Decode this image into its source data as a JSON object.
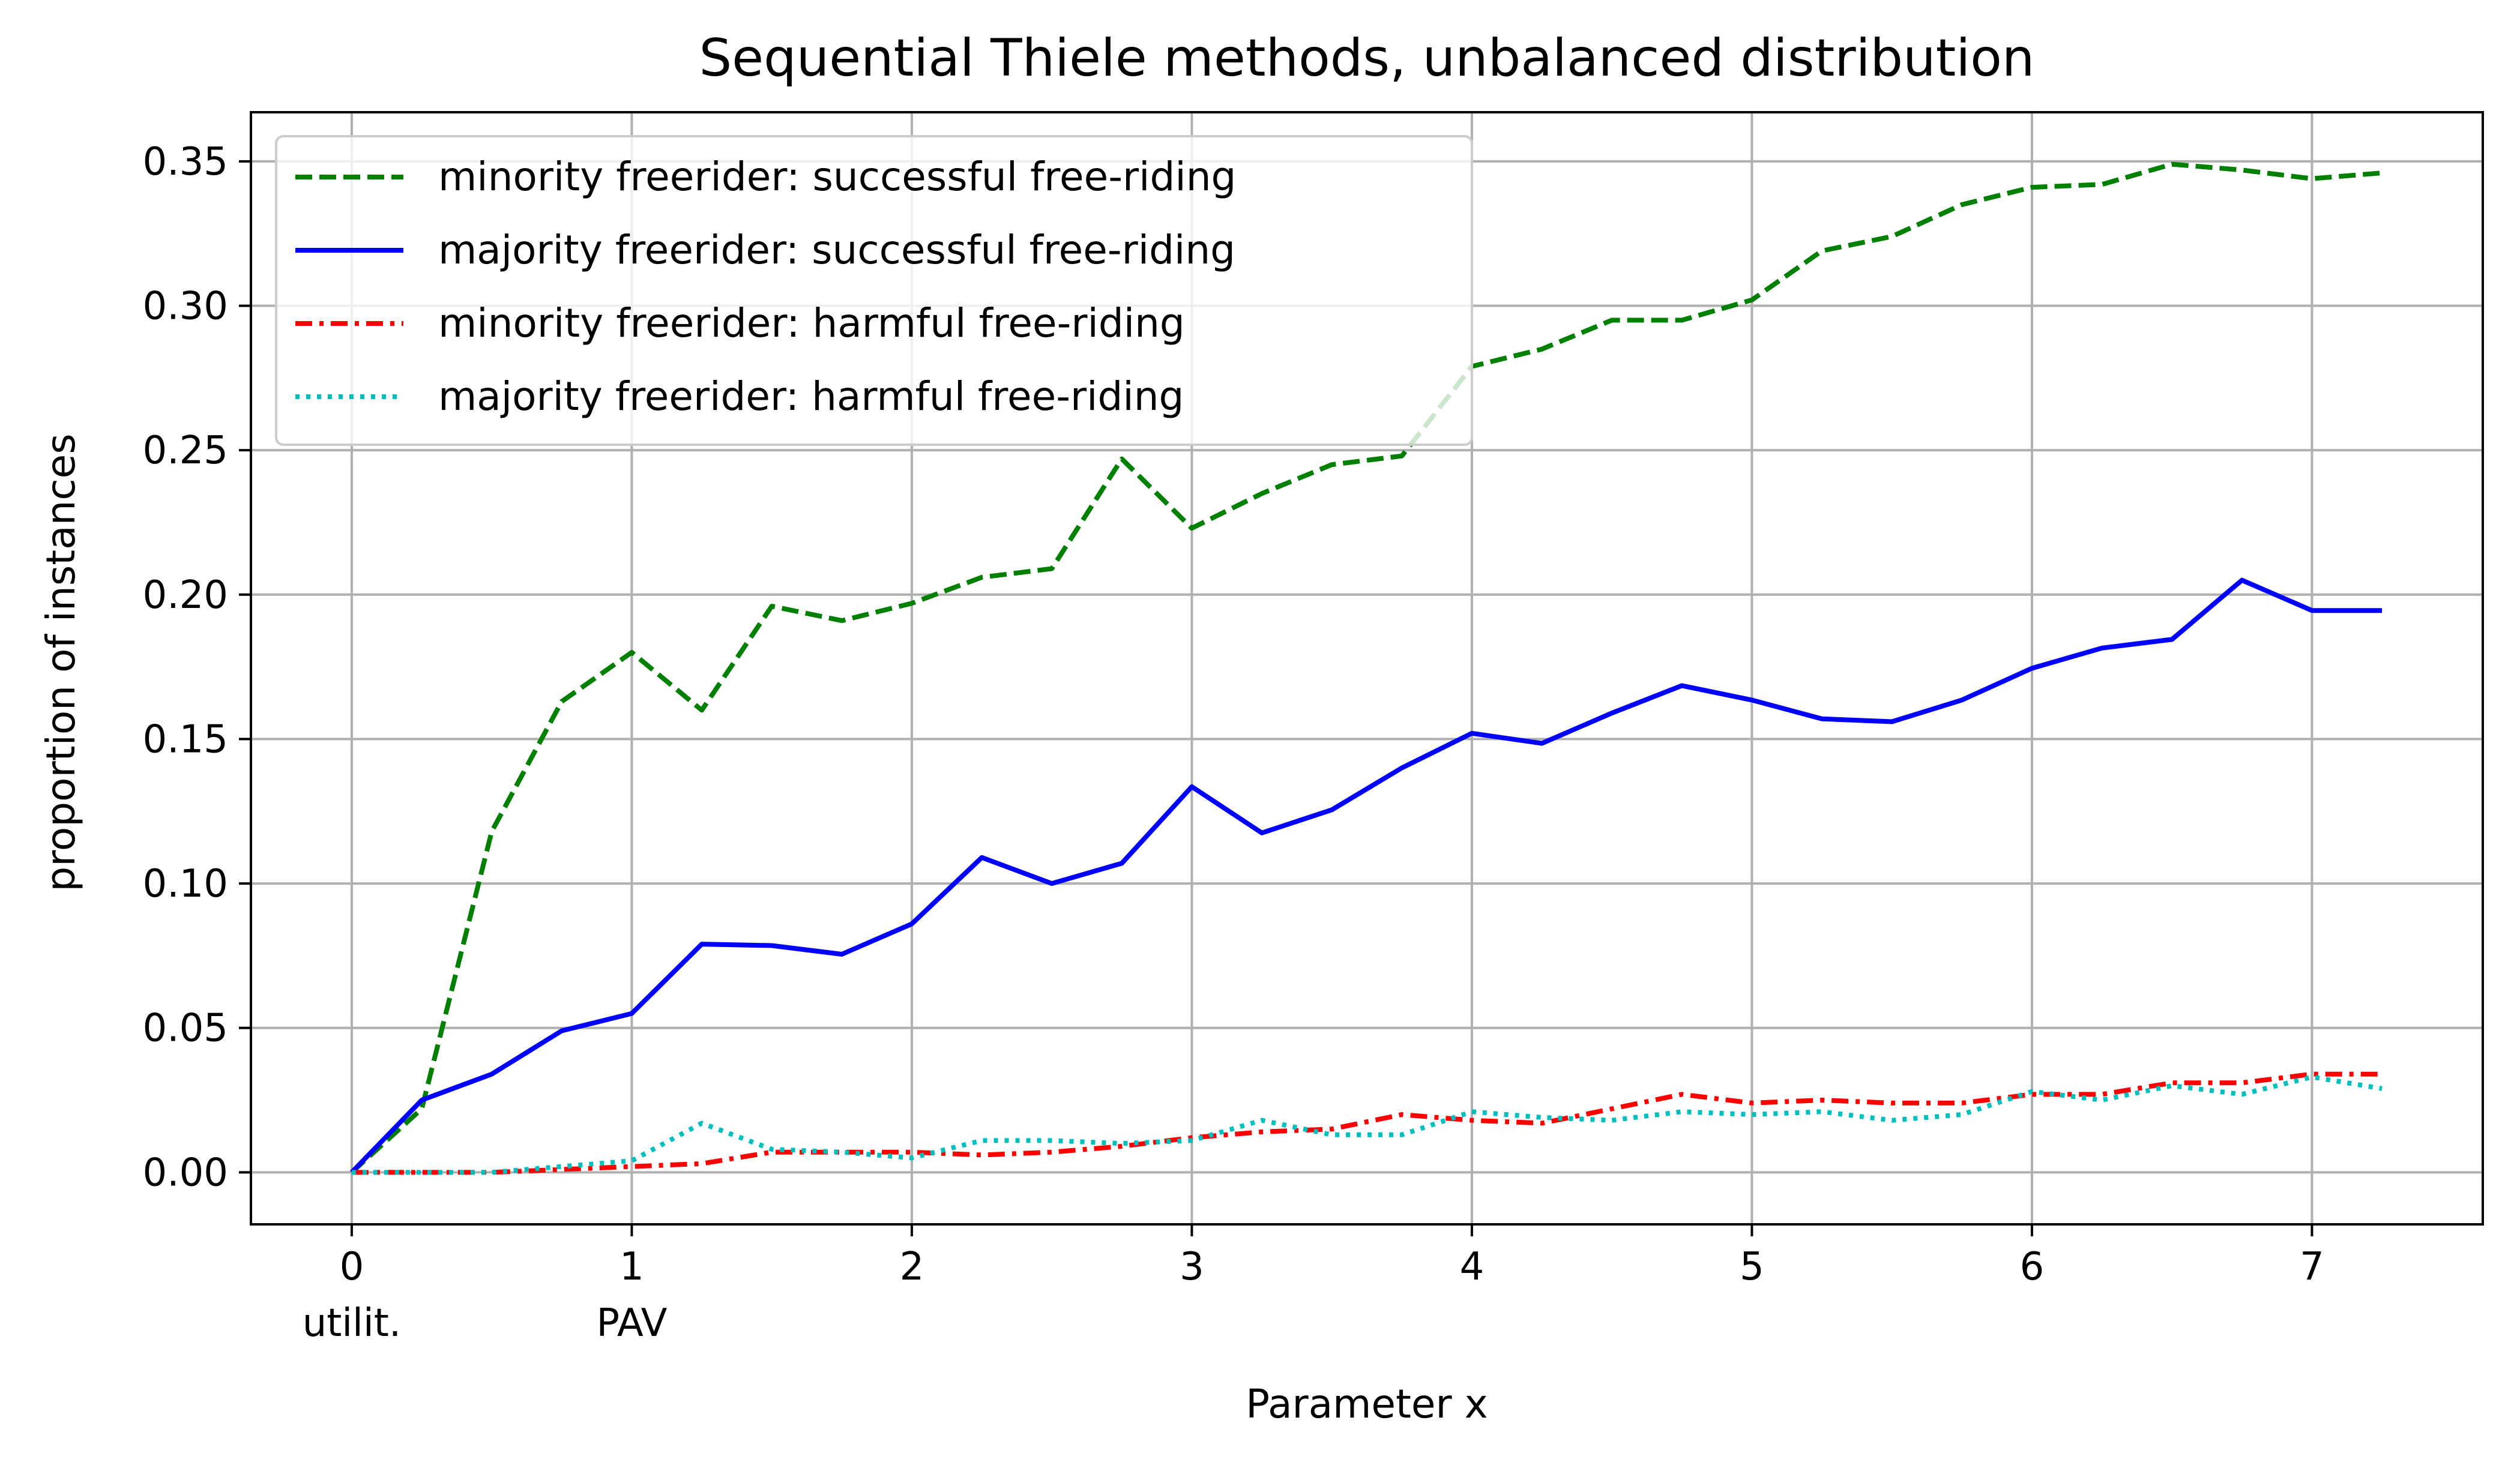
{
  "chart_data": {
    "type": "line",
    "title": "Sequential Thiele methods, unbalanced distribution",
    "xlabel": "Parameter x",
    "ylabel": "proportion of instances",
    "xlim": [
      -0.36,
      7.61
    ],
    "ylim": [
      -0.018,
      0.367
    ],
    "grid": true,
    "legend_position": "top-left",
    "x_ticks": [
      0,
      1,
      2,
      3,
      4,
      5,
      6,
      7
    ],
    "x_tick_labels": [
      "0",
      "1",
      "2",
      "3",
      "4",
      "5",
      "6",
      "7"
    ],
    "x_extra_labels": [
      {
        "x": 0,
        "text": "utilit."
      },
      {
        "x": 1,
        "text": "PAV"
      }
    ],
    "y_ticks": [
      0,
      0.05,
      0.1,
      0.15,
      0.2,
      0.25,
      0.3,
      0.35
    ],
    "y_tick_labels": [
      "0.00",
      "0.05",
      "0.10",
      "0.15",
      "0.20",
      "0.25",
      "0.30",
      "0.35"
    ],
    "x": [
      0,
      0.25,
      0.5,
      0.75,
      1,
      1.25,
      1.5,
      1.75,
      2,
      2.25,
      2.5,
      2.75,
      3,
      3.25,
      3.5,
      3.75,
      4,
      4.25,
      4.5,
      4.75,
      5,
      5.25,
      5.5,
      5.75,
      6,
      6.25,
      6.5,
      6.75,
      7,
      7.25
    ],
    "series": [
      {
        "name": "minority freerider: successful free-riding",
        "color": "#008000",
        "dash": "dashed",
        "values": [
          0,
          0.022,
          0.118,
          0.163,
          0.18,
          0.16,
          0.196,
          0.191,
          0.197,
          0.206,
          0.209,
          0.247,
          0.223,
          0.235,
          0.245,
          0.248,
          0.279,
          0.285,
          0.295,
          0.295,
          0.302,
          0.319,
          0.324,
          0.335,
          0.341,
          0.342,
          0.349,
          0.347,
          0.344,
          0.346
        ]
      },
      {
        "name": "majority freerider: successful free-riding",
        "color": "#0000ff",
        "dash": "solid",
        "values": [
          0,
          0.025,
          0.034,
          0.049,
          0.055,
          0.079,
          0.0785,
          0.0755,
          0.086,
          0.109,
          0.1,
          0.107,
          0.1335,
          0.1175,
          0.1255,
          0.14,
          0.152,
          0.1485,
          0.159,
          0.1685,
          0.1635,
          0.157,
          0.156,
          0.1635,
          0.1745,
          0.1815,
          0.1845,
          0.205,
          0.1945,
          0.1945
        ]
      },
      {
        "name": "minority freerider: harmful free-riding",
        "color": "#ff0000",
        "dash": "dashdot",
        "values": [
          0,
          0,
          0,
          0.001,
          0.002,
          0.003,
          0.007,
          0.007,
          0.007,
          0.006,
          0.007,
          0.009,
          0.012,
          0.014,
          0.015,
          0.02,
          0.018,
          0.017,
          0.022,
          0.027,
          0.024,
          0.025,
          0.024,
          0.024,
          0.027,
          0.027,
          0.031,
          0.031,
          0.034,
          0.034
        ]
      },
      {
        "name": "majority freerider: harmful free-riding",
        "color": "#00bfbf",
        "dash": "dotted",
        "values": [
          0,
          0,
          0,
          0.002,
          0.004,
          0.017,
          0.008,
          0.007,
          0.005,
          0.011,
          0.011,
          0.01,
          0.011,
          0.018,
          0.013,
          0.013,
          0.021,
          0.019,
          0.018,
          0.021,
          0.02,
          0.021,
          0.018,
          0.02,
          0.028,
          0.025,
          0.03,
          0.027,
          0.033,
          0.029
        ]
      }
    ]
  }
}
